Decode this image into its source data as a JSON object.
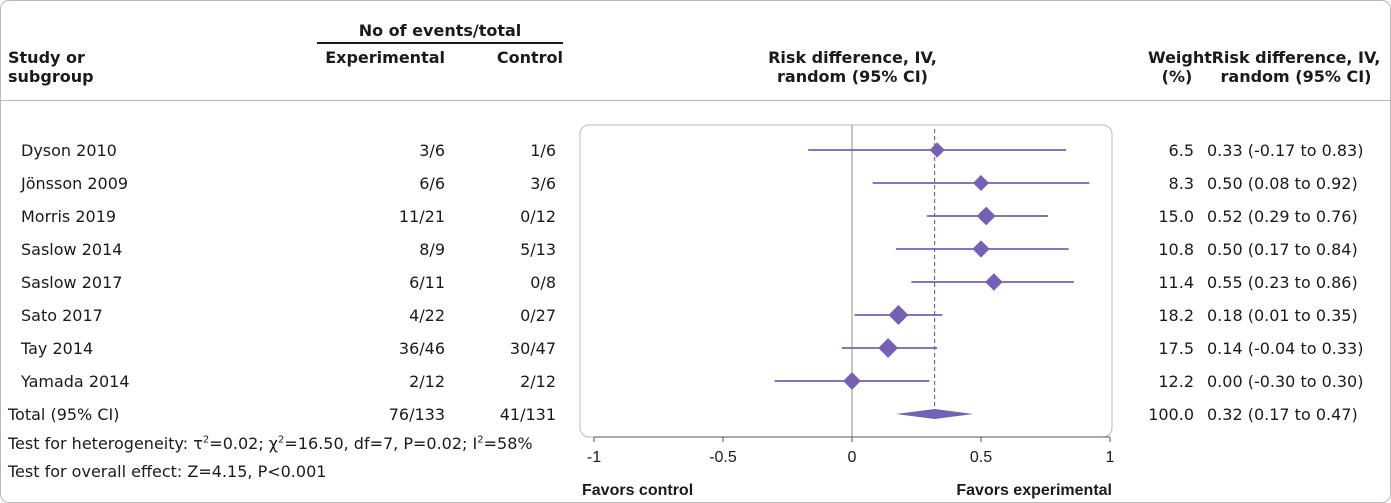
{
  "header": {
    "events_group": "No of events/total",
    "study_l1": "Study or",
    "study_l2": "subgroup",
    "experimental": "Experimental",
    "control": "Control",
    "plot_title_l1": "Risk difference, IV,",
    "plot_title_l2": "random (95% CI)",
    "weight_l1": "Weight",
    "weight_l2": "(%)",
    "rd_l1": "Risk difference, IV,",
    "rd_l2": "random (95% CI)"
  },
  "rows": [
    {
      "study": "Dyson 2010",
      "experimental": "3/6",
      "control": "1/6",
      "weight": "6.5",
      "ci_text": "0.33 (-0.17 to 0.83)"
    },
    {
      "study": "Jönsson 2009",
      "experimental": "6/6",
      "control": "3/6",
      "weight": "8.3",
      "ci_text": "0.50 (0.08 to 0.92)"
    },
    {
      "study": "Morris 2019",
      "experimental": "11/21",
      "control": "0/12",
      "weight": "15.0",
      "ci_text": "0.52 (0.29 to 0.76)"
    },
    {
      "study": "Saslow 2014",
      "experimental": "8/9",
      "control": "5/13",
      "weight": "10.8",
      "ci_text": "0.50 (0.17 to 0.84)"
    },
    {
      "study": "Saslow 2017",
      "experimental": "6/11",
      "control": "0/8",
      "weight": "11.4",
      "ci_text": "0.55 (0.23 to 0.86)"
    },
    {
      "study": "Sato 2017",
      "experimental": "4/22",
      "control": "0/27",
      "weight": "18.2",
      "ci_text": "0.18 (0.01 to 0.35)"
    },
    {
      "study": "Tay 2014",
      "experimental": "36/46",
      "control": "30/47",
      "weight": "17.5",
      "ci_text": "0.14 (-0.04 to 0.33)"
    },
    {
      "study": "Yamada 2014",
      "experimental": "2/12",
      "control": "2/12",
      "weight": "12.2",
      "ci_text": "0.00 (-0.30 to 0.30)"
    }
  ],
  "total": {
    "study": "Total (95% CI)",
    "experimental": "76/133",
    "control": "41/131",
    "weight": "100.0",
    "ci_text": "0.32 (0.17 to 0.47)"
  },
  "heterogeneity": {
    "prefix": "Test for heterogeneity: τ",
    "tau_sup": "2",
    "mid": "=0.02; χ",
    "chi_sup": "2",
    "mid2": "=16.50, df=7, P=0.02; I",
    "i_sup": "2",
    "suffix": "=58%"
  },
  "overall_effect": "Test for overall effect: Z=4.15, P<0.001",
  "favors_left": "Favors control",
  "favors_right": "Favors experimental",
  "colors": {
    "marker": "#7460b4",
    "axis": "#555555",
    "text": "#1a1a1a",
    "border": "#b9b9b9"
  },
  "chart_data": {
    "type": "forest",
    "xlim": [
      -1,
      1
    ],
    "ticks": [
      -1,
      -0.5,
      0,
      0.5,
      1
    ],
    "tick_labels": [
      "-1",
      "-0.5",
      "0",
      "0.5",
      "1"
    ],
    "studies": [
      {
        "name": "Dyson 2010",
        "estimate": 0.33,
        "lower": -0.17,
        "upper": 0.83,
        "weight": 6.5
      },
      {
        "name": "Jönsson 2009",
        "estimate": 0.5,
        "lower": 0.08,
        "upper": 0.92,
        "weight": 8.3
      },
      {
        "name": "Morris 2019",
        "estimate": 0.52,
        "lower": 0.29,
        "upper": 0.76,
        "weight": 15.0
      },
      {
        "name": "Saslow 2014",
        "estimate": 0.5,
        "lower": 0.17,
        "upper": 0.84,
        "weight": 10.8
      },
      {
        "name": "Saslow 2017",
        "estimate": 0.55,
        "lower": 0.23,
        "upper": 0.86,
        "weight": 11.4
      },
      {
        "name": "Sato 2017",
        "estimate": 0.18,
        "lower": 0.01,
        "upper": 0.35,
        "weight": 18.2
      },
      {
        "name": "Tay 2014",
        "estimate": 0.14,
        "lower": -0.04,
        "upper": 0.33,
        "weight": 17.5
      },
      {
        "name": "Yamada 2014",
        "estimate": 0.0,
        "lower": -0.3,
        "upper": 0.3,
        "weight": 12.2
      }
    ],
    "pooled": {
      "estimate": 0.32,
      "lower": 0.17,
      "upper": 0.47,
      "weight": 100.0
    }
  }
}
